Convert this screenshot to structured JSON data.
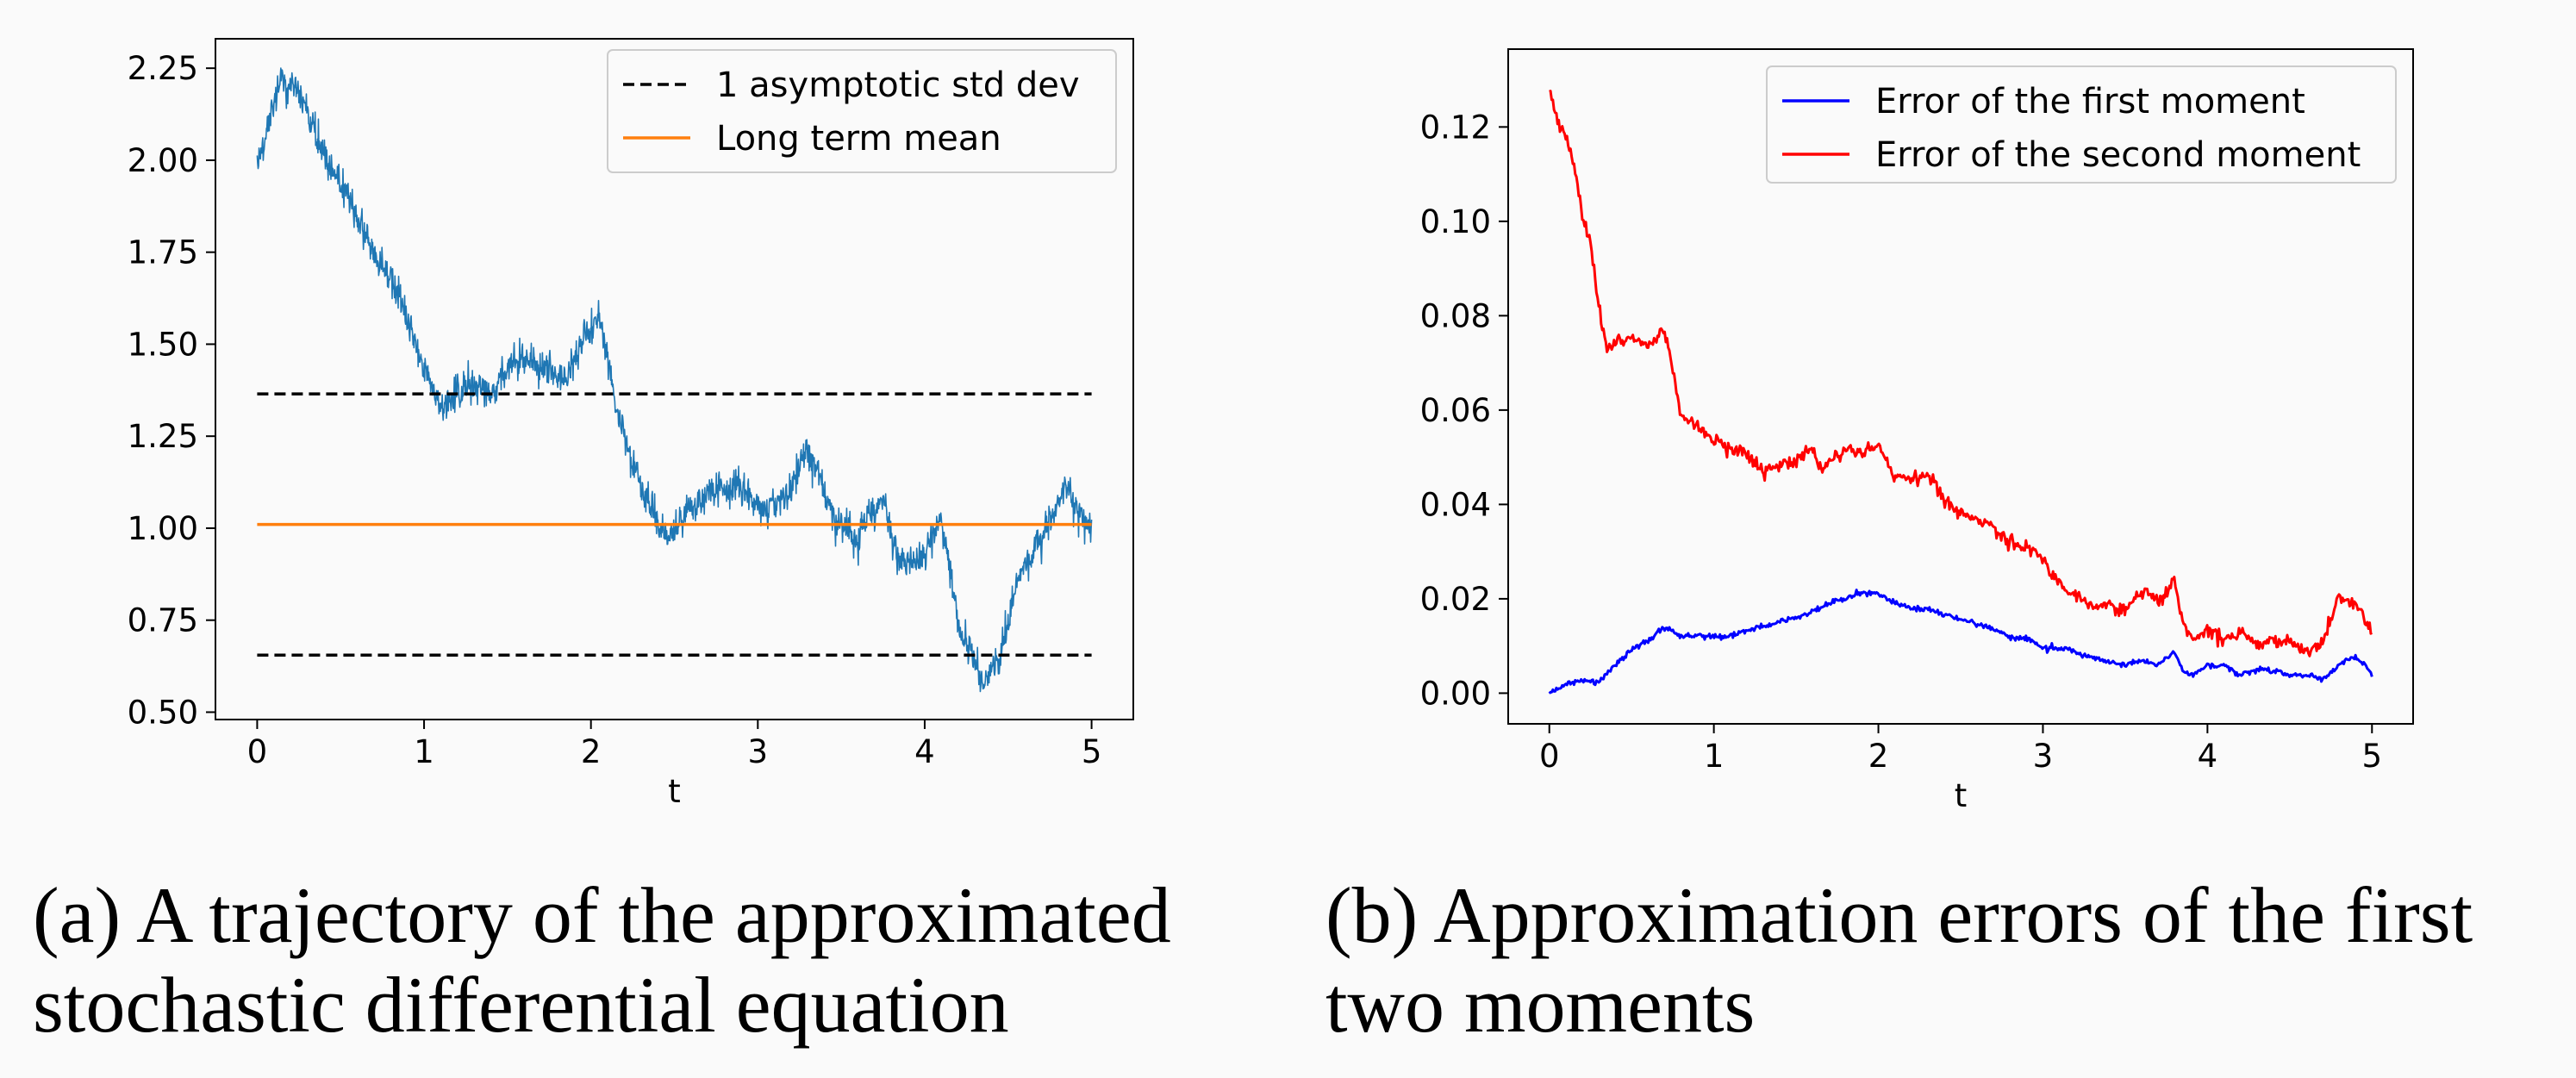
{
  "chart_data": [
    {
      "type": "line",
      "xlabel": "t",
      "xlim": [
        -0.25,
        5.25
      ],
      "ylim": [
        0.48,
        2.33
      ],
      "xticks": [
        "0",
        "1",
        "2",
        "3",
        "4",
        "5"
      ],
      "yticks": [
        "0.50",
        "0.75",
        "1.00",
        "1.25",
        "1.50",
        "1.75",
        "2.00",
        "2.25"
      ],
      "legend_position": "top-right",
      "series": [
        {
          "name": "trajectory",
          "color": "#1f77b4",
          "x_range": [
            0,
            5
          ],
          "y_start": 1.99,
          "y_end": 0.99,
          "anchors": [
            [
              0.0,
              1.99
            ],
            [
              0.15,
              2.25
            ],
            [
              0.25,
              2.2
            ],
            [
              0.4,
              2.02
            ],
            [
              0.55,
              1.85
            ],
            [
              0.7,
              1.7
            ],
            [
              0.85,
              1.58
            ],
            [
              1.0,
              1.4
            ],
            [
              1.1,
              1.27
            ],
            [
              1.25,
              1.3
            ],
            [
              1.4,
              1.3
            ],
            [
              1.55,
              1.36
            ],
            [
              1.7,
              1.35
            ],
            [
              1.85,
              1.29
            ],
            [
              1.95,
              1.36
            ],
            [
              2.05,
              1.44
            ],
            [
              2.15,
              1.22
            ],
            [
              2.3,
              1.0
            ],
            [
              2.45,
              0.9
            ],
            [
              2.6,
              1.0
            ],
            [
              2.75,
              1.08
            ],
            [
              2.9,
              1.08
            ],
            [
              3.05,
              1.02
            ],
            [
              3.2,
              1.1
            ],
            [
              3.3,
              1.2
            ],
            [
              3.45,
              1.04
            ],
            [
              3.6,
              0.96
            ],
            [
              3.75,
              1.06
            ],
            [
              3.85,
              0.87
            ],
            [
              4.0,
              0.92
            ],
            [
              4.1,
              1.04
            ],
            [
              4.2,
              0.77
            ],
            [
              4.35,
              0.62
            ],
            [
              4.45,
              0.67
            ],
            [
              4.55,
              0.86
            ],
            [
              4.65,
              0.96
            ],
            [
              4.75,
              1.04
            ],
            [
              4.85,
              1.12
            ],
            [
              4.95,
              1.02
            ],
            [
              5.0,
              0.99
            ]
          ]
        },
        {
          "name": "1 asymptotic std dev",
          "color": "#000000",
          "x": [
            0,
            5
          ],
          "y_upper": 1.365,
          "y_lower": 0.655
        },
        {
          "name": "Long term mean",
          "color": "#ff7f0e",
          "x": [
            0,
            5
          ],
          "y": 1.01
        }
      ],
      "legend": [
        "1 asymptotic std dev",
        "Long term mean"
      ]
    },
    {
      "type": "line",
      "xlabel": "t",
      "xlim": [
        -0.25,
        5.25
      ],
      "ylim": [
        -0.0065,
        0.1365
      ],
      "xticks": [
        "0",
        "1",
        "2",
        "3",
        "4",
        "5"
      ],
      "yticks": [
        "0.00",
        "0.02",
        "0.04",
        "0.06",
        "0.08",
        "0.10",
        "0.12"
      ],
      "legend_position": "top-right",
      "series": [
        {
          "name": "Error of the first moment",
          "color": "#0000ff",
          "anchors": [
            [
              0.0,
              0.0
            ],
            [
              0.1,
              0.002
            ],
            [
              0.2,
              0.003
            ],
            [
              0.3,
              0.002
            ],
            [
              0.4,
              0.006
            ],
            [
              0.5,
              0.009
            ],
            [
              0.6,
              0.011
            ],
            [
              0.7,
              0.014
            ],
            [
              0.8,
              0.012
            ],
            [
              0.9,
              0.012
            ],
            [
              1.0,
              0.012
            ],
            [
              1.1,
              0.012
            ],
            [
              1.2,
              0.013
            ],
            [
              1.3,
              0.014
            ],
            [
              1.4,
              0.015
            ],
            [
              1.5,
              0.016
            ],
            [
              1.6,
              0.017
            ],
            [
              1.7,
              0.019
            ],
            [
              1.8,
              0.02
            ],
            [
              1.9,
              0.021
            ],
            [
              2.0,
              0.021
            ],
            [
              2.1,
              0.019
            ],
            [
              2.2,
              0.018
            ],
            [
              2.3,
              0.018
            ],
            [
              2.4,
              0.017
            ],
            [
              2.5,
              0.016
            ],
            [
              2.6,
              0.015
            ],
            [
              2.7,
              0.014
            ],
            [
              2.8,
              0.012
            ],
            [
              2.9,
              0.012
            ],
            [
              3.0,
              0.01
            ],
            [
              3.1,
              0.01
            ],
            [
              3.2,
              0.009
            ],
            [
              3.3,
              0.008
            ],
            [
              3.4,
              0.007
            ],
            [
              3.5,
              0.006
            ],
            [
              3.6,
              0.007
            ],
            [
              3.7,
              0.006
            ],
            [
              3.8,
              0.009
            ],
            [
              3.85,
              0.005
            ],
            [
              3.9,
              0.004
            ],
            [
              4.0,
              0.006
            ],
            [
              4.1,
              0.006
            ],
            [
              4.2,
              0.004
            ],
            [
              4.3,
              0.005
            ],
            [
              4.4,
              0.005
            ],
            [
              4.5,
              0.004
            ],
            [
              4.6,
              0.004
            ],
            [
              4.7,
              0.003
            ],
            [
              4.8,
              0.006
            ],
            [
              4.9,
              0.008
            ],
            [
              5.0,
              0.004
            ]
          ]
        },
        {
          "name": "Error of the second moment",
          "color": "#ff0000",
          "anchors": [
            [
              0.0,
              0.128
            ],
            [
              0.05,
              0.121
            ],
            [
              0.1,
              0.118
            ],
            [
              0.15,
              0.112
            ],
            [
              0.2,
              0.101
            ],
            [
              0.25,
              0.095
            ],
            [
              0.3,
              0.082
            ],
            [
              0.35,
              0.072
            ],
            [
              0.4,
              0.074
            ],
            [
              0.5,
              0.075
            ],
            [
              0.6,
              0.073
            ],
            [
              0.7,
              0.077
            ],
            [
              0.75,
              0.068
            ],
            [
              0.8,
              0.058
            ],
            [
              0.9,
              0.056
            ],
            [
              1.0,
              0.053
            ],
            [
              1.1,
              0.051
            ],
            [
              1.2,
              0.05
            ],
            [
              1.3,
              0.046
            ],
            [
              1.4,
              0.048
            ],
            [
              1.5,
              0.049
            ],
            [
              1.6,
              0.052
            ],
            [
              1.65,
              0.047
            ],
            [
              1.7,
              0.049
            ],
            [
              1.8,
              0.052
            ],
            [
              1.9,
              0.051
            ],
            [
              2.0,
              0.053
            ],
            [
              2.1,
              0.046
            ],
            [
              2.2,
              0.046
            ],
            [
              2.3,
              0.047
            ],
            [
              2.4,
              0.041
            ],
            [
              2.5,
              0.039
            ],
            [
              2.6,
              0.037
            ],
            [
              2.7,
              0.035
            ],
            [
              2.8,
              0.032
            ],
            [
              2.9,
              0.031
            ],
            [
              3.0,
              0.028
            ],
            [
              3.1,
              0.023
            ],
            [
              3.2,
              0.021
            ],
            [
              3.3,
              0.018
            ],
            [
              3.4,
              0.019
            ],
            [
              3.5,
              0.017
            ],
            [
              3.6,
              0.021
            ],
            [
              3.7,
              0.019
            ],
            [
              3.8,
              0.023
            ],
            [
              3.85,
              0.014
            ],
            [
              3.9,
              0.011
            ],
            [
              4.0,
              0.013
            ],
            [
              4.1,
              0.011
            ],
            [
              4.2,
              0.012
            ],
            [
              4.3,
              0.01
            ],
            [
              4.4,
              0.011
            ],
            [
              4.5,
              0.011
            ],
            [
              4.6,
              0.009
            ],
            [
              4.7,
              0.011
            ],
            [
              4.8,
              0.021
            ],
            [
              4.9,
              0.019
            ],
            [
              5.0,
              0.013
            ]
          ]
        }
      ],
      "legend": [
        "Error of the first moment",
        "Error of the second moment"
      ]
    }
  ],
  "captions": {
    "a": [
      "(a) A trajectory of the approximated",
      "stochastic differential equation"
    ],
    "b": [
      "(b) Approximation errors of the first",
      "two moments"
    ]
  }
}
